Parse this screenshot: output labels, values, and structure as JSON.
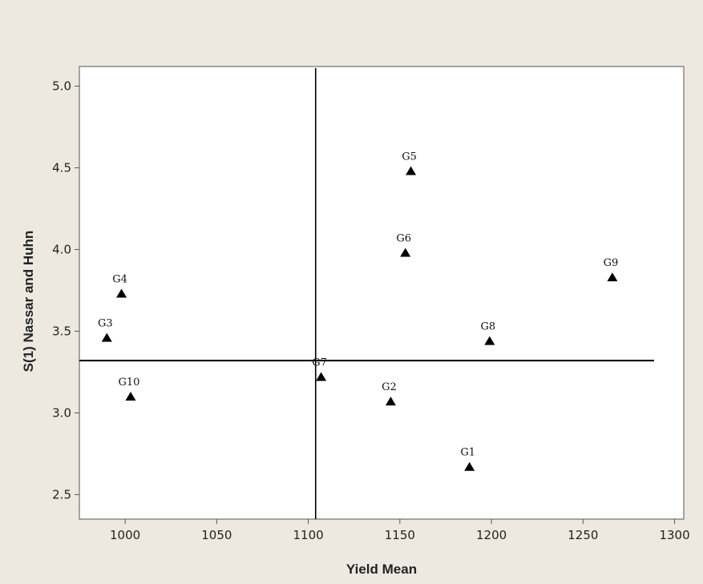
{
  "chart_data": {
    "type": "scatter",
    "xlabel": "Yield Mean",
    "ylabel": "S(1) Nassar and Huhn",
    "xlim": [
      975,
      1305
    ],
    "ylim": [
      2.35,
      5.12
    ],
    "x_ticks": [
      1000,
      1050,
      1100,
      1150,
      1200,
      1250,
      1300
    ],
    "y_ticks": [
      2.5,
      3.0,
      3.5,
      4.0,
      4.5,
      5.0
    ],
    "x_tick_labels": [
      "1000",
      "1050",
      "1100",
      "1150",
      "1200",
      "1250",
      "1300"
    ],
    "y_tick_labels": [
      "2.5",
      "3.0",
      "3.5",
      "4.0",
      "4.5",
      "5.0"
    ],
    "reference_lines": {
      "x": 1104,
      "y": 3.32
    },
    "marker": "triangle",
    "points": [
      {
        "label": "G1",
        "x": 1188,
        "y": 2.67
      },
      {
        "label": "G2",
        "x": 1145,
        "y": 3.07
      },
      {
        "label": "G3",
        "x": 990,
        "y": 3.46
      },
      {
        "label": "G4",
        "x": 998,
        "y": 3.73
      },
      {
        "label": "G5",
        "x": 1156,
        "y": 4.48
      },
      {
        "label": "G6",
        "x": 1153,
        "y": 3.98
      },
      {
        "label": "G7",
        "x": 1107,
        "y": 3.22
      },
      {
        "label": "G8",
        "x": 1199,
        "y": 3.44
      },
      {
        "label": "G9",
        "x": 1266,
        "y": 3.83
      },
      {
        "label": "G10",
        "x": 1003,
        "y": 3.1
      }
    ],
    "grid": false,
    "colors": {
      "background": "#ede9e0",
      "plot_area": "#ffffff",
      "ink": "#000000"
    }
  }
}
